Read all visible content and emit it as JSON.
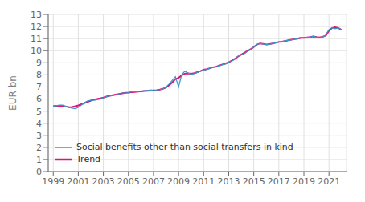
{
  "chart_data": {
    "type": "line",
    "ylabel": "EUR bn",
    "x": [
      1999.0,
      1999.25,
      1999.5,
      1999.75,
      2000.0,
      2000.25,
      2000.5,
      2000.75,
      2001.0,
      2001.25,
      2001.5,
      2001.75,
      2002.0,
      2002.25,
      2002.5,
      2002.75,
      2003.0,
      2003.25,
      2003.5,
      2003.75,
      2004.0,
      2004.25,
      2004.5,
      2004.75,
      2005.0,
      2005.25,
      2005.5,
      2005.75,
      2006.0,
      2006.25,
      2006.5,
      2006.75,
      2007.0,
      2007.25,
      2007.5,
      2007.75,
      2008.0,
      2008.25,
      2008.5,
      2008.75,
      2009.0,
      2009.25,
      2009.5,
      2009.75,
      2010.0,
      2010.25,
      2010.5,
      2010.75,
      2011.0,
      2011.25,
      2011.5,
      2011.75,
      2012.0,
      2012.25,
      2012.5,
      2012.75,
      2013.0,
      2013.25,
      2013.5,
      2013.75,
      2014.0,
      2014.25,
      2014.5,
      2014.75,
      2015.0,
      2015.25,
      2015.5,
      2015.75,
      2016.0,
      2016.25,
      2016.5,
      2016.75,
      2017.0,
      2017.25,
      2017.5,
      2017.75,
      2018.0,
      2018.25,
      2018.5,
      2018.75,
      2019.0,
      2019.25,
      2019.5,
      2019.75,
      2020.0,
      2020.25,
      2020.5,
      2020.75,
      2021.0,
      2021.25,
      2021.5,
      2021.75,
      2022.0
    ],
    "series": [
      {
        "name": "Social benefits other than social transfers in kind",
        "color": "#3399cc",
        "values": [
          5.4,
          5.45,
          5.5,
          5.5,
          5.4,
          5.3,
          5.25,
          5.2,
          5.3,
          5.5,
          5.7,
          5.85,
          5.9,
          5.9,
          5.95,
          6.0,
          6.1,
          6.2,
          6.25,
          6.3,
          6.35,
          6.4,
          6.5,
          6.5,
          6.52,
          6.6,
          6.6,
          6.62,
          6.65,
          6.7,
          6.7,
          6.75,
          6.7,
          6.72,
          6.78,
          6.85,
          7.0,
          7.25,
          7.55,
          7.85,
          7.0,
          8.0,
          8.3,
          8.15,
          8.05,
          8.1,
          8.2,
          8.3,
          8.4,
          8.45,
          8.55,
          8.65,
          8.65,
          8.75,
          8.85,
          8.9,
          9.05,
          9.15,
          9.35,
          9.55,
          9.65,
          9.75,
          9.95,
          10.1,
          10.3,
          10.5,
          10.6,
          10.55,
          10.5,
          10.52,
          10.6,
          10.65,
          10.72,
          10.75,
          10.82,
          10.85,
          10.9,
          10.95,
          11.0,
          11.1,
          11.05,
          11.1,
          11.12,
          11.2,
          11.1,
          11.05,
          11.12,
          11.3,
          11.75,
          11.9,
          11.82,
          11.9,
          11.72
        ]
      },
      {
        "name": "Trend",
        "color": "#dd1177",
        "values": [
          5.42,
          5.43,
          5.44,
          5.43,
          5.38,
          5.33,
          5.34,
          5.4,
          5.47,
          5.57,
          5.67,
          5.77,
          5.87,
          5.95,
          6.0,
          6.05,
          6.12,
          6.2,
          6.27,
          6.32,
          6.37,
          6.42,
          6.47,
          6.52,
          6.54,
          6.57,
          6.59,
          6.61,
          6.63,
          6.66,
          6.68,
          6.7,
          6.72,
          6.74,
          6.78,
          6.85,
          6.95,
          7.15,
          7.38,
          7.65,
          7.75,
          7.95,
          8.1,
          8.12,
          8.1,
          8.15,
          8.22,
          8.32,
          8.42,
          8.47,
          8.55,
          8.63,
          8.68,
          8.78,
          8.86,
          8.94,
          9.05,
          9.18,
          9.33,
          9.52,
          9.67,
          9.82,
          9.97,
          10.12,
          10.3,
          10.5,
          10.6,
          10.56,
          10.52,
          10.55,
          10.6,
          10.66,
          10.72,
          10.75,
          10.8,
          10.86,
          10.91,
          10.96,
          11.0,
          11.06,
          11.06,
          11.09,
          11.12,
          11.17,
          11.12,
          11.1,
          11.15,
          11.25,
          11.65,
          11.88,
          11.93,
          11.88,
          11.72
        ]
      }
    ],
    "xlim": [
      1998.6,
      2022.4
    ],
    "ylim": [
      0,
      13
    ],
    "xticks": [
      1999,
      2001,
      2003,
      2005,
      2007,
      2009,
      2011,
      2013,
      2015,
      2017,
      2019,
      2021
    ],
    "yticks": [
      0,
      1,
      2,
      3,
      4,
      5,
      6,
      7,
      8,
      9,
      10,
      11,
      12,
      13
    ],
    "grid": true,
    "legend": "lower left"
  }
}
